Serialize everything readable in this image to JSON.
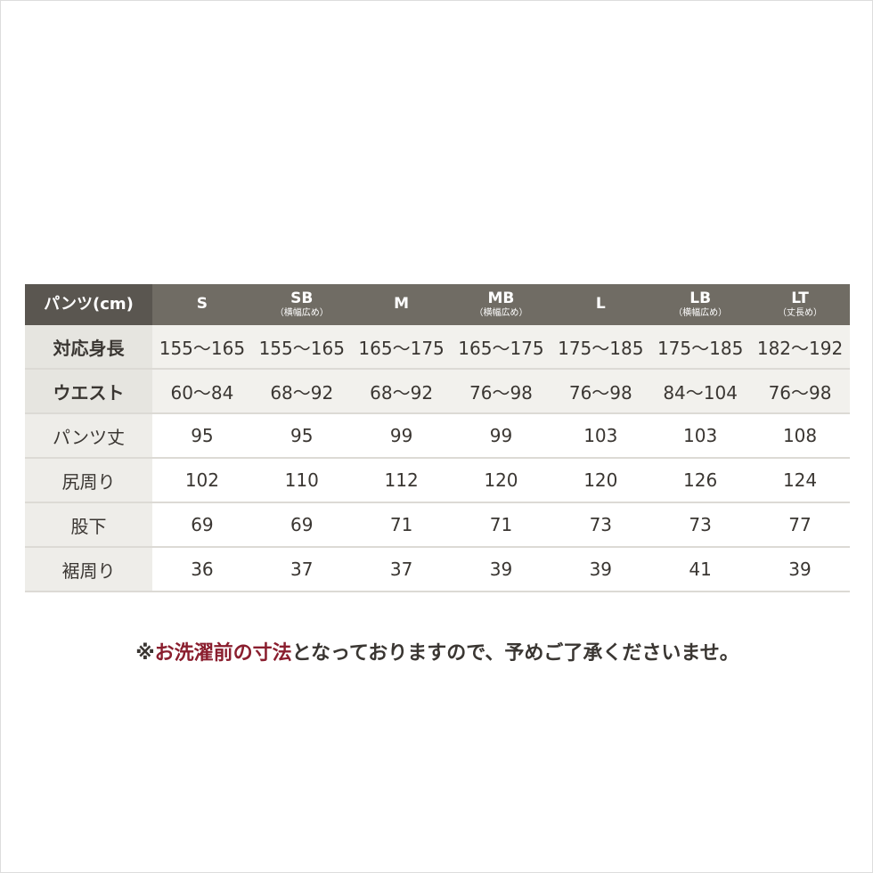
{
  "table": {
    "corner": "パンツ(cm)",
    "sizes": [
      {
        "name": "S",
        "sub": ""
      },
      {
        "name": "SB",
        "sub": "（横幅広め）"
      },
      {
        "name": "M",
        "sub": ""
      },
      {
        "name": "MB",
        "sub": "（横幅広め）"
      },
      {
        "name": "L",
        "sub": ""
      },
      {
        "name": "LB",
        "sub": "（横幅広め）"
      },
      {
        "name": "LT",
        "sub": "（丈長め）"
      }
    ],
    "rows": [
      {
        "label": "対応身長",
        "values": [
          "155〜165",
          "155〜165",
          "165〜175",
          "165〜175",
          "175〜185",
          "175〜185",
          "182〜192"
        ]
      },
      {
        "label": "ウエスト",
        "values": [
          "60〜84",
          "68〜92",
          "68〜92",
          "76〜98",
          "76〜98",
          "84〜104",
          "76〜98"
        ]
      },
      {
        "label": "パンツ丈",
        "values": [
          "95",
          "95",
          "99",
          "99",
          "103",
          "103",
          "108"
        ]
      },
      {
        "label": "尻周り",
        "values": [
          "102",
          "110",
          "112",
          "120",
          "120",
          "126",
          "124"
        ]
      },
      {
        "label": "股下",
        "values": [
          "69",
          "69",
          "71",
          "71",
          "73",
          "73",
          "77"
        ]
      },
      {
        "label": "裾周り",
        "values": [
          "36",
          "37",
          "37",
          "39",
          "39",
          "41",
          "39"
        ]
      }
    ]
  },
  "note": {
    "prefix": "※",
    "highlight": "お洗濯前の寸法",
    "rest": "となっておりますので、予めご了承くださいませ。"
  },
  "colors": {
    "header": "#706c64",
    "corner": "#5a5650",
    "highlight": "#8a1e2e"
  }
}
